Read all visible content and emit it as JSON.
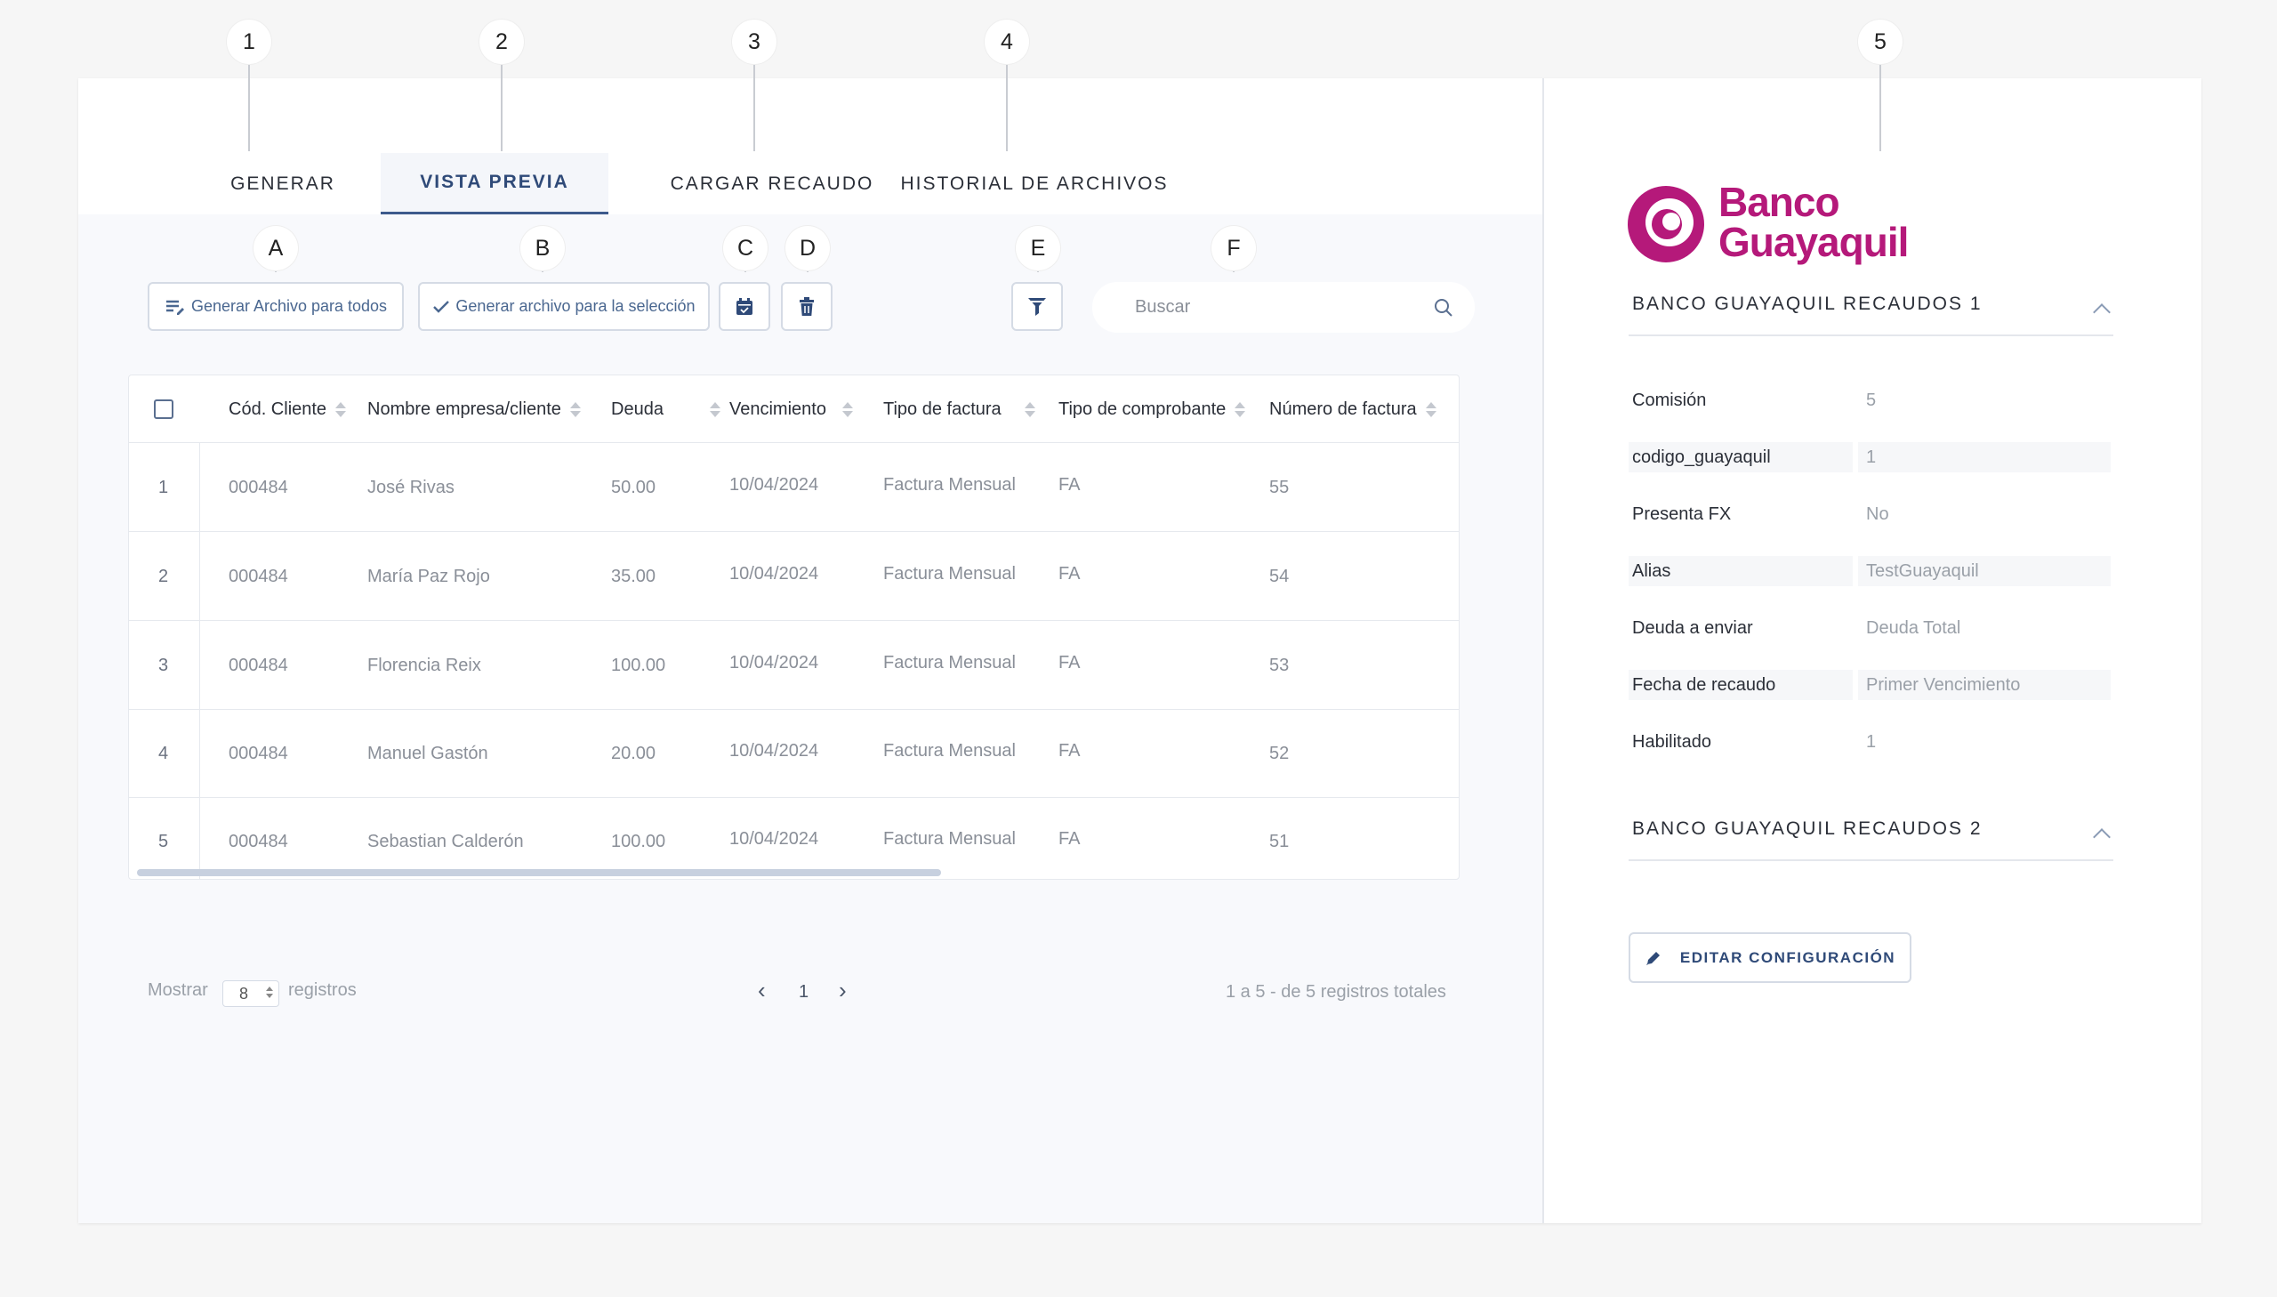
{
  "markers": {
    "m1": "1",
    "m2": "2",
    "m3": "3",
    "m4": "4",
    "m5": "5",
    "mA": "A",
    "mB": "B",
    "mC": "C",
    "mD": "D",
    "mE": "E",
    "mF": "F"
  },
  "tabs": {
    "generar": "GENERAR",
    "vista_previa": "VISTA PREVIA",
    "cargar_recaudo": "CARGAR RECAUDO",
    "historial": "HISTORIAL DE ARCHIVOS"
  },
  "toolbar": {
    "generar_todos": "Generar Archivo para todos",
    "generar_seleccion": "Generar archivo para la selección",
    "search_placeholder": "Buscar"
  },
  "table": {
    "headers": {
      "cod_cliente": "Cód. Cliente",
      "nombre": "Nombre empresa/cliente",
      "deuda": "Deuda",
      "vencimiento": "Vencimiento",
      "tipo_factura": "Tipo de factura",
      "tipo_comprobante": "Tipo de comprobante",
      "numero_factura": "Número de factura"
    },
    "rows": [
      {
        "idx": "1",
        "cod": "000484",
        "nombre": "José Rivas",
        "deuda": "50.00",
        "venc": "10/04/2024",
        "tipo": "Factura Mensual",
        "comp": "FA",
        "num": "55"
      },
      {
        "idx": "2",
        "cod": "000484",
        "nombre": "María Paz Rojo",
        "deuda": "35.00",
        "venc": "10/04/2024",
        "tipo": "Factura Mensual",
        "comp": "FA",
        "num": "54"
      },
      {
        "idx": "3",
        "cod": "000484",
        "nombre": "Florencia Reix",
        "deuda": "100.00",
        "venc": "10/04/2024",
        "tipo": "Factura Mensual",
        "comp": "FA",
        "num": "53"
      },
      {
        "idx": "4",
        "cod": "000484",
        "nombre": "Manuel Gastón",
        "deuda": "20.00",
        "venc": "10/04/2024",
        "tipo": "Factura Mensual",
        "comp": "FA",
        "num": "52"
      },
      {
        "idx": "5",
        "cod": "000484",
        "nombre": "Sebastian Calderón",
        "deuda": "100.00",
        "venc": "10/04/2024",
        "tipo": "Factura Mensual",
        "comp": "FA",
        "num": "51"
      }
    ]
  },
  "pagination": {
    "mostrar": "Mostrar",
    "page_size": "8",
    "registros": "registros",
    "current_page": "1",
    "summary": "1 a 5 - de 5 registros totales"
  },
  "bank": {
    "logo_line1": "Banco",
    "logo_line2": "Guayaquil",
    "brand_color": "#b5197a",
    "section1_title": "BANCO GUAYAQUIL RECAUDOS 1",
    "section2_title": "BANCO GUAYAQUIL RECAUDOS 2",
    "fields": [
      {
        "label": "Comisión",
        "value": "5"
      },
      {
        "label": "codigo_guayaquil",
        "value": "1"
      },
      {
        "label": "Presenta FX",
        "value": "No"
      },
      {
        "label": "Alias",
        "value": "TestGuayaquil"
      },
      {
        "label": "Deuda a enviar",
        "value": "Deuda Total"
      },
      {
        "label": "Fecha de recaudo",
        "value": "Primer Vencimiento"
      },
      {
        "label": "Habilitado",
        "value": "1"
      }
    ],
    "edit_button": "EDITAR CONFIGURACIÓN"
  },
  "colors": {
    "accent": "#3d5a8c",
    "icon_blue": "#2f4a78"
  }
}
